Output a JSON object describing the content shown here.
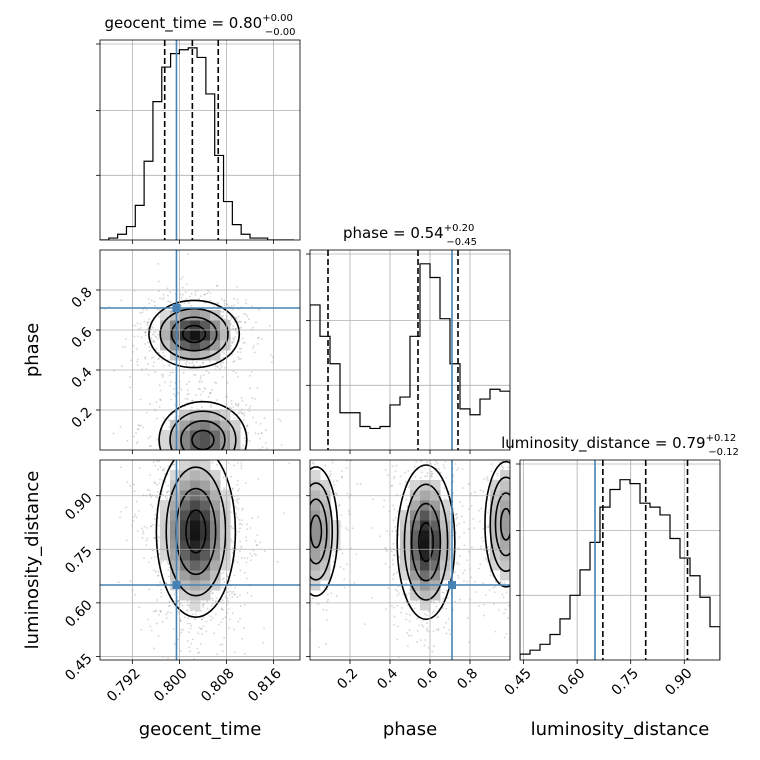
{
  "chart_data": {
    "type": "corner",
    "parameters": [
      "geocent_time",
      "phase",
      "luminosity_distance"
    ],
    "truth": {
      "geocent_time": 0.7995,
      "phase": 0.71,
      "luminosity_distance": 0.65
    },
    "marginals": [
      {
        "parameter": "geocent_time",
        "title": {
          "main": "geocent_time = 0.80",
          "sup": "+0.00",
          "sub": "−0.00"
        },
        "xrange": [
          0.7865,
          0.8205
        ],
        "quantiles": [
          0.7975,
          0.8022,
          0.8066
        ],
        "bin_edges": [
          0.7865,
          0.788,
          0.7895,
          0.791,
          0.7925,
          0.794,
          0.7955,
          0.797,
          0.7985,
          0.8,
          0.8015,
          0.803,
          0.8045,
          0.806,
          0.8075,
          0.809,
          0.8105,
          0.812,
          0.8135,
          0.815,
          0.8165,
          0.818,
          0.8195
        ],
        "counts": [
          0,
          1,
          3,
          7,
          18,
          41,
          72,
          90,
          97,
          99,
          100,
          95,
          76,
          44,
          20,
          8,
          3,
          1,
          1,
          0,
          0,
          0
        ],
        "max": 102
      },
      {
        "parameter": "phase",
        "title": {
          "main": "phase = 0.54",
          "sup": "+0.20",
          "sub": "−0.45"
        },
        "xrange": [
          0.0,
          1.0
        ],
        "quantiles": [
          0.09,
          0.54,
          0.74
        ],
        "bin_edges": [
          0.0,
          0.05,
          0.1,
          0.15,
          0.2,
          0.25,
          0.3,
          0.35,
          0.4,
          0.45,
          0.5,
          0.55,
          0.6,
          0.65,
          0.7,
          0.75,
          0.8,
          0.85,
          0.9,
          0.95,
          1.0
        ],
        "counts": [
          74,
          58,
          44,
          19,
          19,
          12,
          11,
          12,
          23,
          27,
          58,
          95,
          88,
          67,
          44,
          21,
          18,
          26,
          31,
          30
        ],
        "max": 100
      },
      {
        "parameter": "luminosity_distance",
        "title": {
          "main": "luminosity_distance = 0.79",
          "sup": "+0.12",
          "sub": "−0.12"
        },
        "xrange": [
          0.44,
          1.0
        ],
        "quantiles": [
          0.672,
          0.792,
          0.909
        ],
        "bin_edges": [
          0.44,
          0.468,
          0.496,
          0.524,
          0.552,
          0.58,
          0.608,
          0.636,
          0.664,
          0.692,
          0.72,
          0.748,
          0.776,
          0.804,
          0.832,
          0.86,
          0.888,
          0.916,
          0.944,
          0.972,
          1.0
        ],
        "counts": [
          3,
          5,
          8,
          13,
          21,
          33,
          46,
          60,
          78,
          87,
          92,
          90,
          80,
          78,
          74,
          62,
          52,
          43,
          32,
          17
        ],
        "max": 100
      }
    ],
    "axes": {
      "geocent_time": {
        "range": [
          0.7865,
          0.8205
        ],
        "ticks": [
          0.792,
          0.8,
          0.808,
          0.816
        ],
        "tick_labels": [
          "0.792",
          "0.800",
          "0.808",
          "0.816"
        ],
        "label": "geocent_time"
      },
      "phase": {
        "range": [
          0.0,
          1.0
        ],
        "ticks": [
          0.2,
          0.4,
          0.6,
          0.8
        ],
        "tick_labels": [
          "0.2",
          "0.4",
          "0.6",
          "0.8"
        ],
        "label": "phase"
      },
      "luminosity_distance": {
        "range": [
          0.44,
          1.0
        ],
        "ticks": [
          0.45,
          0.6,
          0.75,
          0.9
        ],
        "tick_labels": [
          "0.45",
          "0.60",
          "0.75",
          "0.90"
        ],
        "label": "luminosity_distance"
      }
    },
    "joint_density_modes": [
      {
        "x": "geocent_time",
        "y": "phase",
        "blobs": [
          {
            "cx": 0.8025,
            "cy": 0.58,
            "sx": 0.0032,
            "sy": 0.07,
            "w": 1.0
          },
          {
            "cx": 0.804,
            "cy": 0.05,
            "sx": 0.0035,
            "sy": 0.09,
            "w": 0.75
          }
        ]
      },
      {
        "x": "geocent_time",
        "y": "luminosity_distance",
        "blobs": [
          {
            "cx": 0.8028,
            "cy": 0.8,
            "sx": 0.0028,
            "sy": 0.1,
            "w": 1.0
          }
        ]
      },
      {
        "x": "phase",
        "y": "luminosity_distance",
        "blobs": [
          {
            "cx": 0.58,
            "cy": 0.77,
            "sx": 0.06,
            "sy": 0.09,
            "w": 1.0
          },
          {
            "cx": 0.03,
            "cy": 0.8,
            "sx": 0.06,
            "sy": 0.1,
            "w": 0.45
          },
          {
            "cx": 0.98,
            "cy": 0.82,
            "sx": 0.06,
            "sy": 0.1,
            "w": 0.4
          }
        ]
      }
    ],
    "grid": true,
    "truth_color": "#4682b4",
    "contour_color": "#000000"
  }
}
